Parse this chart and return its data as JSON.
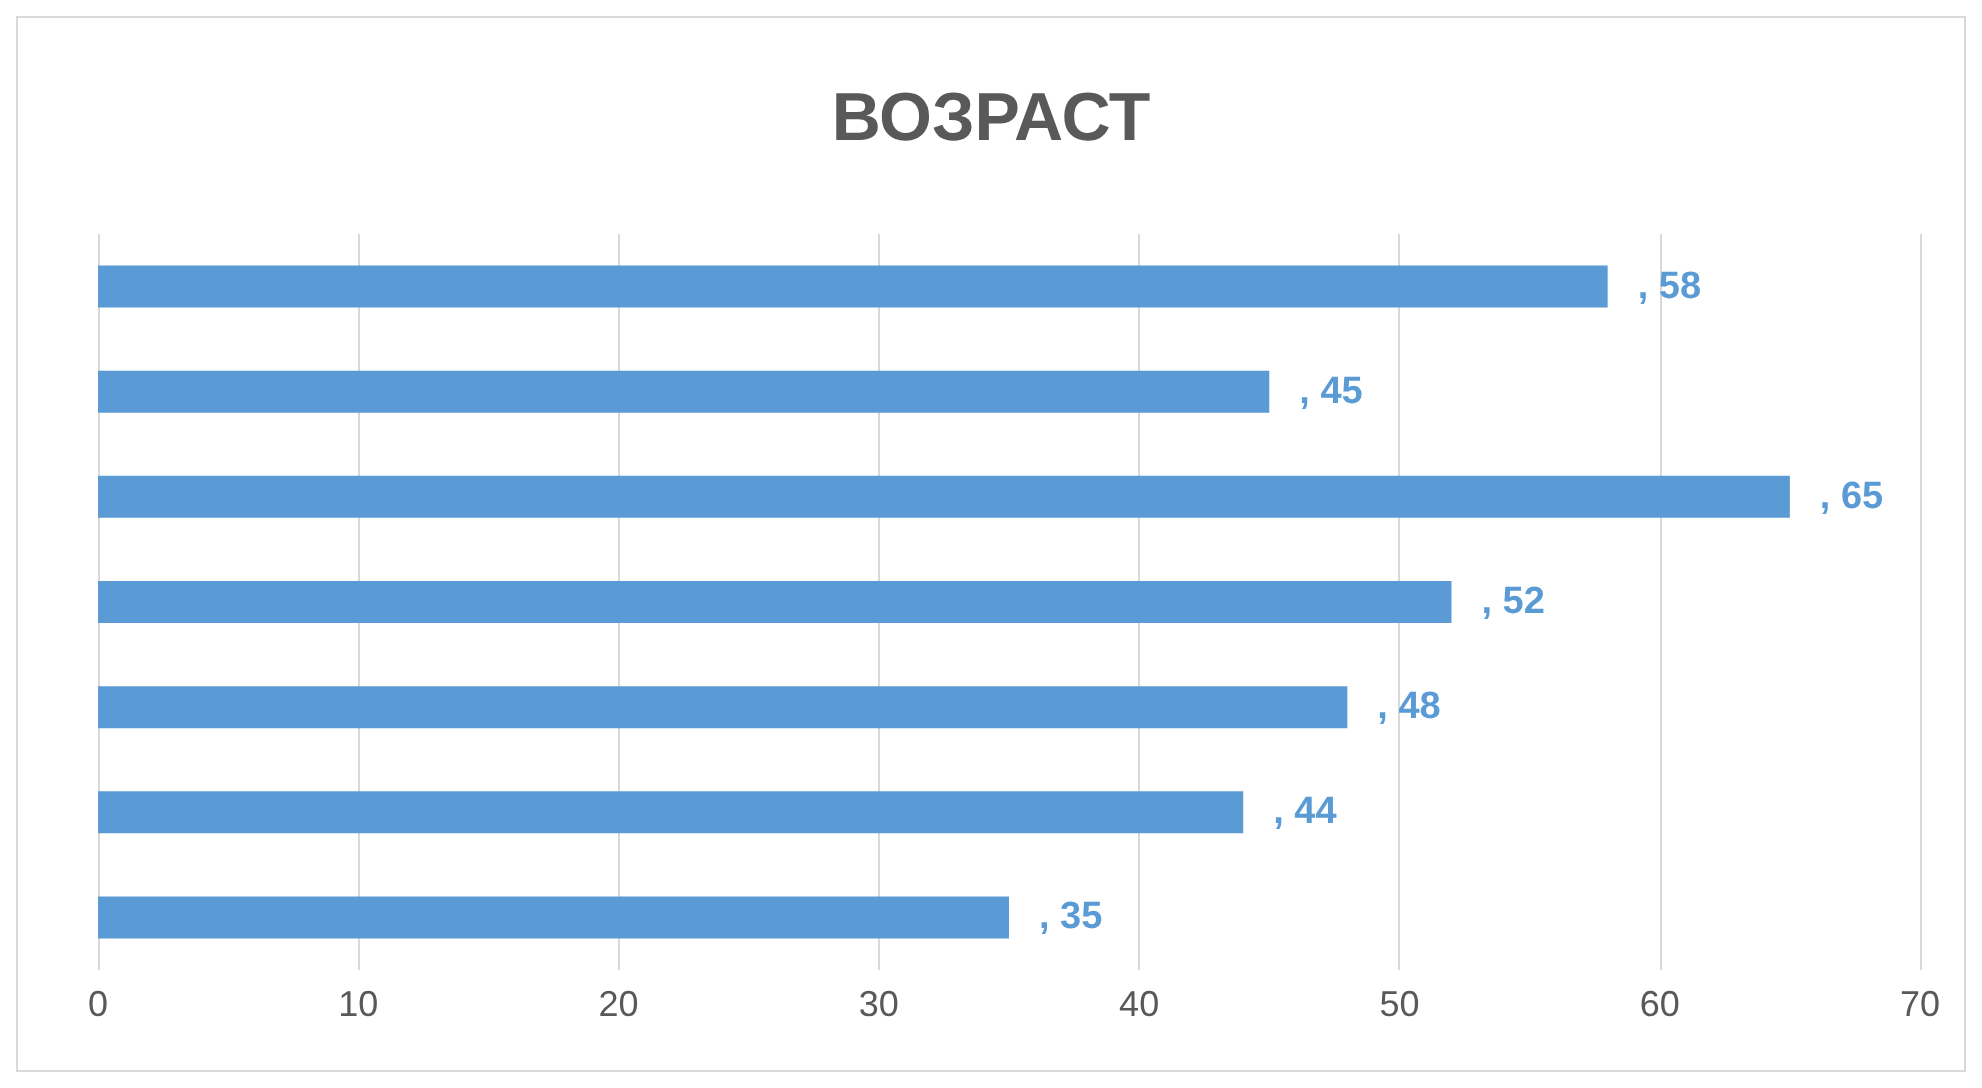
{
  "chart_data": {
    "type": "bar",
    "orientation": "horizontal",
    "title": "ВОЗРАСТ",
    "categories": [
      null,
      null,
      null,
      null,
      null,
      null,
      null
    ],
    "values": [
      58,
      45,
      65,
      52,
      48,
      44,
      35
    ],
    "value_labels": [
      ", 58",
      ", 45",
      ", 65",
      ", 52",
      ", 48",
      ", 44",
      ", 35"
    ],
    "color": "#5b9bd5",
    "xlim": [
      0,
      70
    ],
    "xticks": [
      0,
      10,
      20,
      30,
      40,
      50,
      60,
      70
    ],
    "grid": "x"
  }
}
